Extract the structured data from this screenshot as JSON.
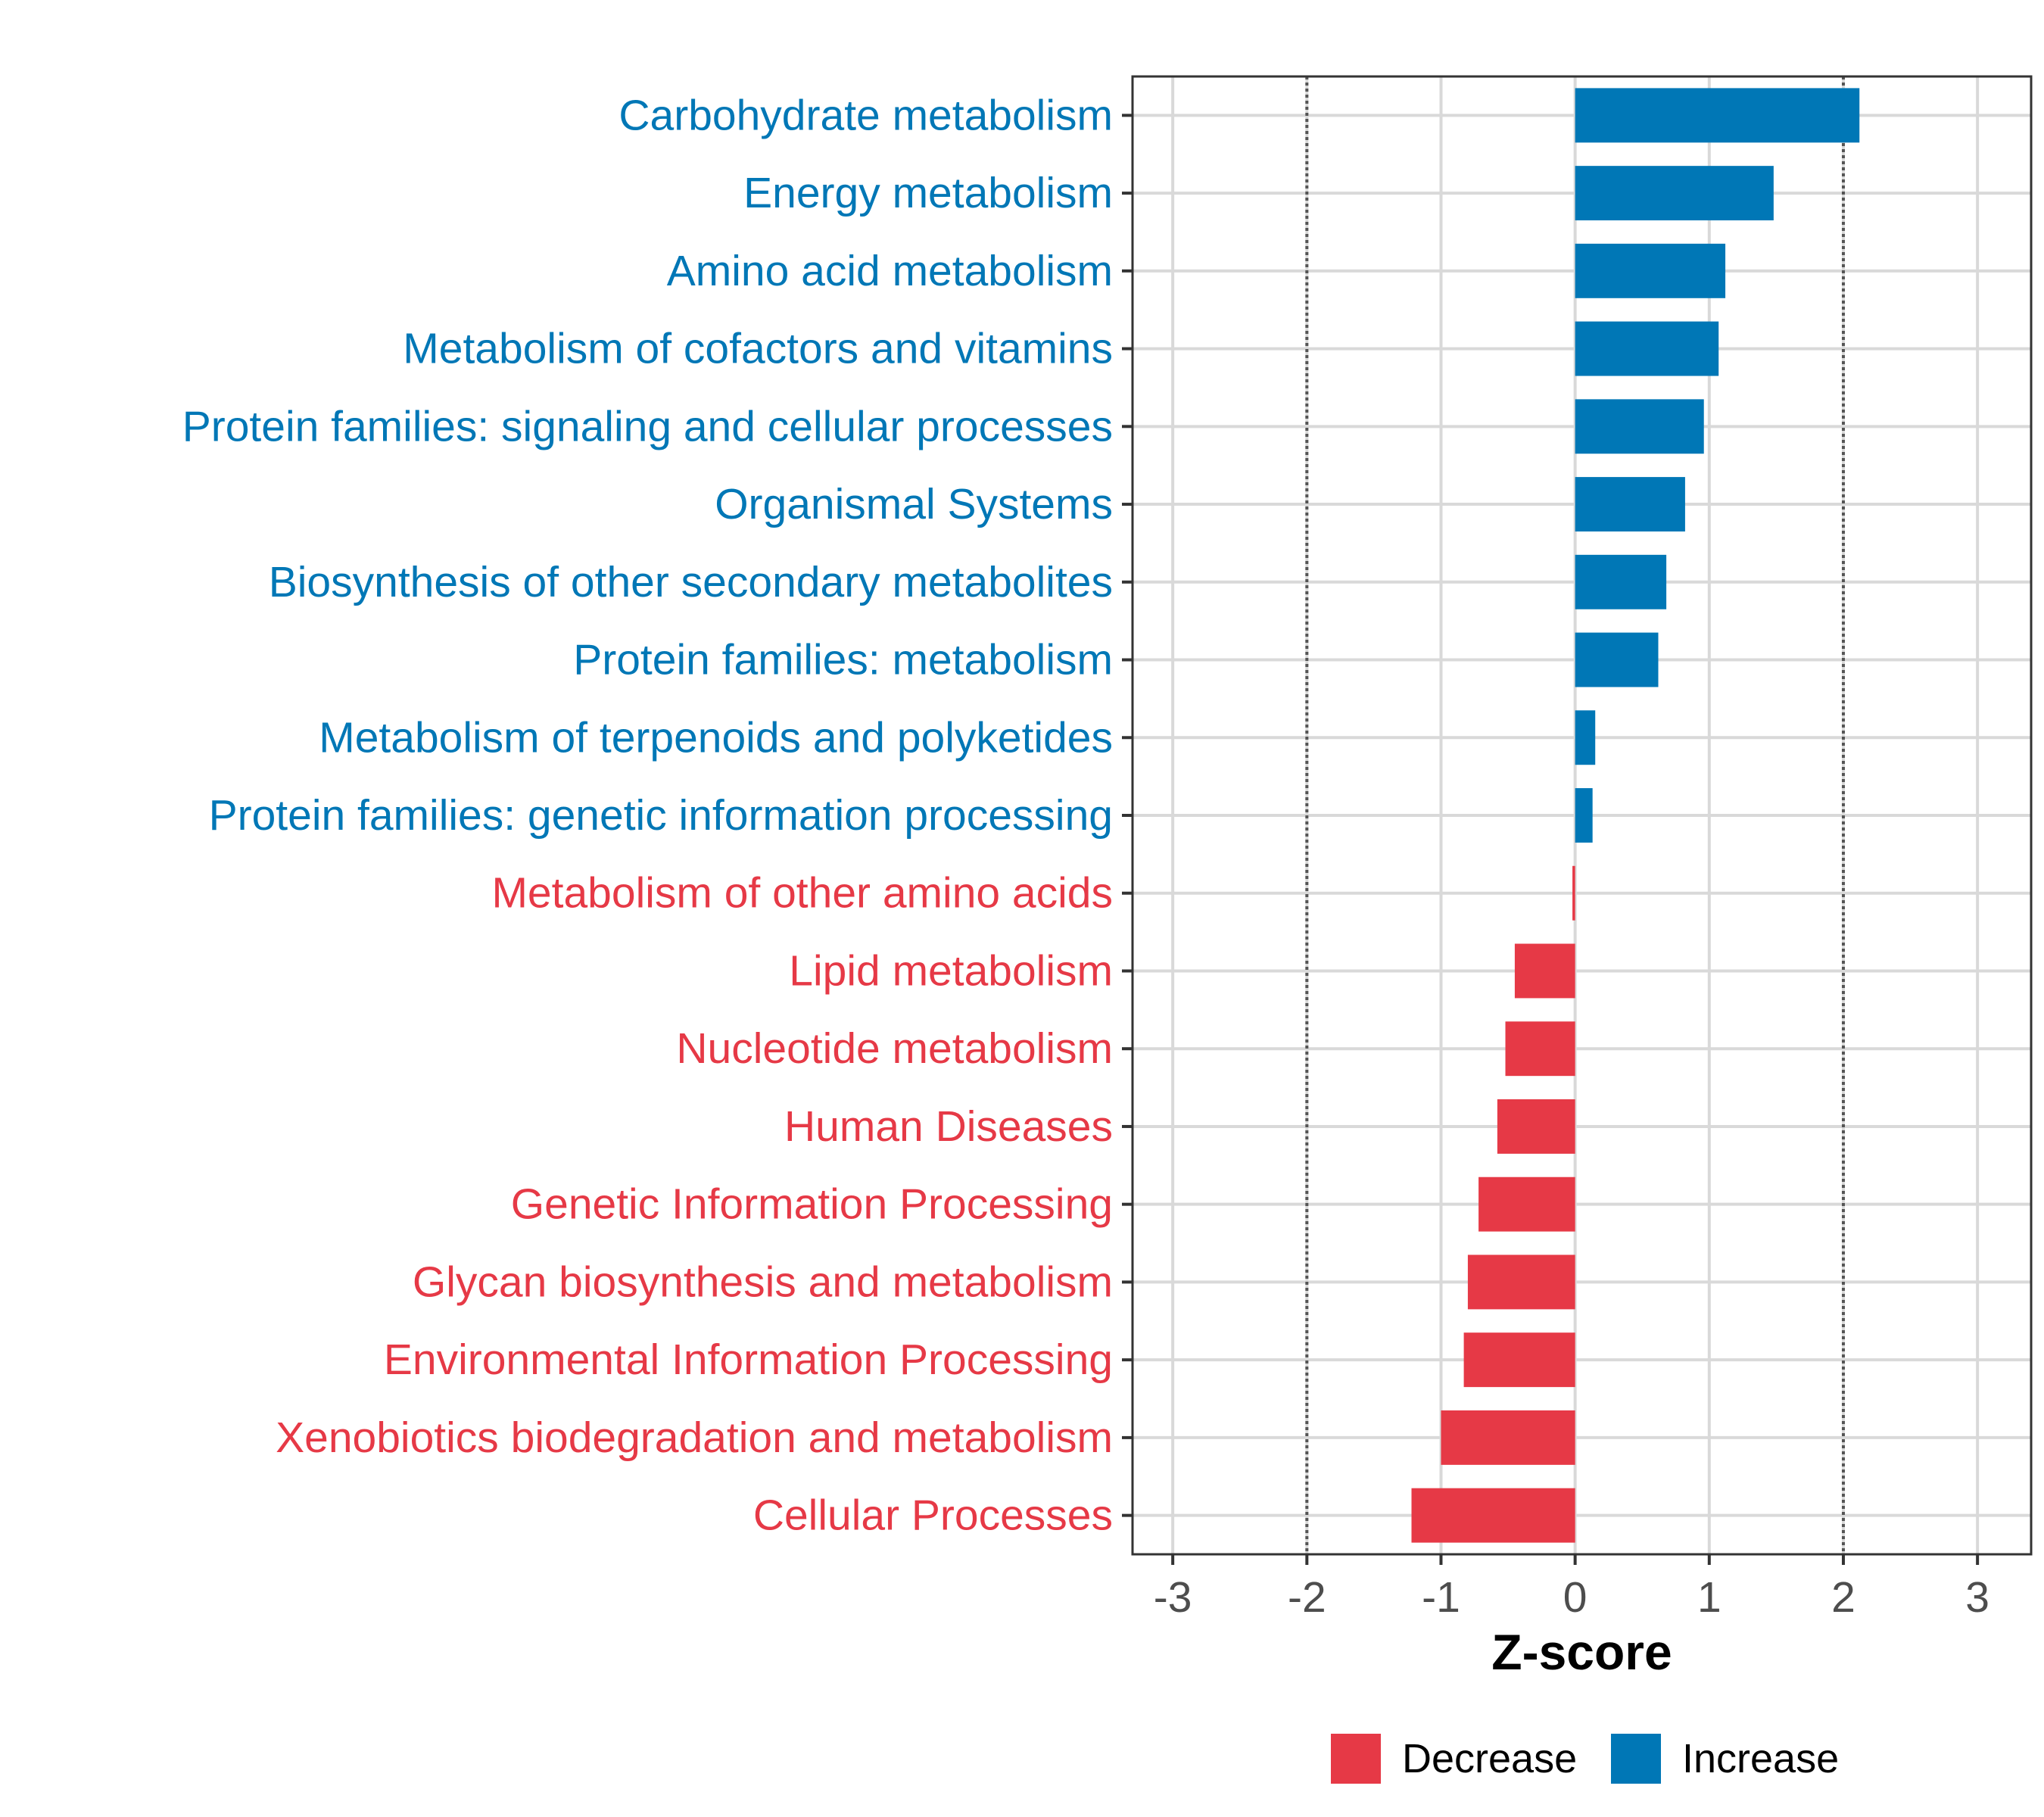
{
  "chart_data": {
    "type": "bar",
    "orientation": "horizontal",
    "title": "",
    "xlabel": "Z-score",
    "ylabel": "",
    "xlim": [
      -3.3,
      3.4
    ],
    "xticks": [
      -3,
      -2,
      -1,
      0,
      1,
      2,
      3
    ],
    "xtick_labels": [
      "-3",
      "-2",
      "-1",
      "0",
      "1",
      "2",
      "3"
    ],
    "reference_lines": [
      -2,
      2
    ],
    "grid": true,
    "legend_position": "bottom",
    "colors": {
      "Decrease": "#E63946",
      "Increase": "#0077B6"
    },
    "categories": [
      "Carbohydrate metabolism",
      "Energy metabolism",
      "Amino acid metabolism",
      "Metabolism of cofactors and vitamins",
      "Protein families: signaling and cellular processes",
      "Organismal Systems",
      "Biosynthesis of other secondary metabolites",
      "Protein families: metabolism",
      "Metabolism of terpenoids and polyketides",
      "Protein families: genetic information processing",
      "Metabolism of other amino acids",
      "Lipid metabolism",
      "Nucleotide metabolism",
      "Human Diseases",
      "Genetic Information Processing",
      "Glycan biosynthesis and metabolism",
      "Environmental Information Processing",
      "Xenobiotics biodegradation and metabolism",
      "Cellular Processes"
    ],
    "values": [
      2.12,
      1.48,
      1.12,
      1.07,
      0.96,
      0.82,
      0.68,
      0.62,
      0.15,
      0.13,
      -0.02,
      -0.45,
      -0.52,
      -0.58,
      -0.72,
      -0.8,
      -0.83,
      -1.0,
      -1.22
    ],
    "groups": [
      "Increase",
      "Increase",
      "Increase",
      "Increase",
      "Increase",
      "Increase",
      "Increase",
      "Increase",
      "Increase",
      "Increase",
      "Decrease",
      "Decrease",
      "Decrease",
      "Decrease",
      "Decrease",
      "Decrease",
      "Decrease",
      "Decrease",
      "Decrease"
    ],
    "legend": [
      "Decrease",
      "Increase"
    ]
  }
}
